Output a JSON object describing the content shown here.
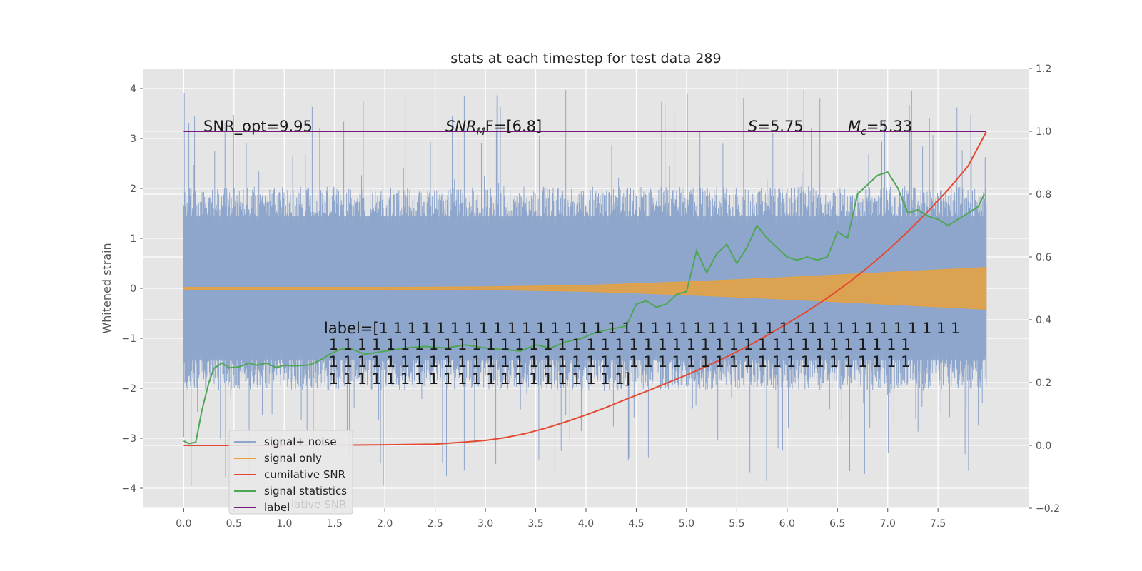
{
  "colors": {
    "background": "#e5e5e5",
    "grid": "#ffffff",
    "noise": "#8ea6cc",
    "signal": "#e9a23b",
    "cumulative": "#e24a33",
    "statistics": "#4ea656",
    "label": "#7a1a7a"
  },
  "chart_data": {
    "type": "line",
    "title": "stats at each timestep for test data 289",
    "ylabel": "Whitened strain",
    "xlim": [
      -0.4,
      8.4
    ],
    "ylim": [
      -4.4,
      4.4
    ],
    "y2lim": [
      -0.2,
      1.2
    ],
    "x_ticks": [
      "0.0",
      "0.5",
      "1.0",
      "1.5",
      "2.0",
      "2.5",
      "3.0",
      "3.5",
      "4.0",
      "4.5",
      "5.0",
      "5.5",
      "6.0",
      "6.5",
      "7.0",
      "7.5"
    ],
    "y_ticks": [
      "4",
      "3",
      "2",
      "1",
      "0",
      "−1",
      "−2",
      "−3",
      "−4"
    ],
    "y2_ticks": [
      "1.2",
      "1.0",
      "0.8",
      "0.6",
      "0.4",
      "0.2",
      "0.0",
      "−0.2"
    ],
    "annotations": {
      "snr_opt": "SNR_opt=9.95",
      "snr_mf_sym": "SNR",
      "snr_mf_sub": "M",
      "snr_mf_rest": "F=[6.8]",
      "s_sym": "S",
      "s_rest": "=5.75",
      "mc_sym": "M",
      "mc_sub": "c",
      "mc_rest": "=5.33",
      "label_lines": [
        "label=[1 1 1 1 1 1 1 1 1 1 1 1 1 1 1 1 1 1 1 1 1 1 1 1 1 1 1 1 1 1 1 1 1 1 1 1 1 1 1 1 1",
        " 1 1 1 1 1 1 1 1 1 1 1 1 1 1 1 1 1 1 1 1 1 1 1 1 1 1 1 1 1 1 1 1 1 1 1 1 1 1 1 1 1",
        " 1 1 1 1 1 1 1 1 1 1 1 1 1 1 1 1 1 1 1 1 1 1 1 1 1 1 1 1 1 1 1 1 1 1 1 1 1 1 1 1 1",
        " 1 1 1 1 1 1 1 1 1 1 1 1 1 1 1 1 1 1 1 1 1]"
      ]
    },
    "legend": {
      "placement": "lower-left",
      "entries": [
        "signal+ noise",
        "signal only",
        "cumilative SNR",
        "signal statistics",
        "label"
      ],
      "ghost_text": "lative SNR"
    },
    "label_line": {
      "x": [
        0.0,
        7.98
      ],
      "y2": 1.0
    },
    "noise_band": {
      "x_start": 0.0,
      "x_end": 7.98,
      "bulk_amplitude": 1.7,
      "peak_amplitude": 4.0
    },
    "signal_envelope": {
      "x": [
        0.0,
        2.0,
        3.0,
        4.0,
        5.0,
        6.0,
        7.0,
        7.98
      ],
      "amplitude": [
        0.02,
        0.02,
        0.03,
        0.06,
        0.13,
        0.22,
        0.32,
        0.42
      ]
    },
    "series": [
      {
        "name": "cumilative SNR",
        "axis": "right",
        "x": [
          0.0,
          0.5,
          1.0,
          1.5,
          2.0,
          2.5,
          2.8,
          3.0,
          3.2,
          3.4,
          3.6,
          3.8,
          4.0,
          4.2,
          4.4,
          4.6,
          4.8,
          5.0,
          5.2,
          5.4,
          5.6,
          5.8,
          6.0,
          6.2,
          6.4,
          6.6,
          6.8,
          7.0,
          7.2,
          7.4,
          7.6,
          7.8,
          7.98
        ],
        "y": [
          0.0,
          0.0,
          0.0,
          0.001,
          0.002,
          0.004,
          0.011,
          0.016,
          0.025,
          0.038,
          0.055,
          0.075,
          0.097,
          0.121,
          0.147,
          0.172,
          0.198,
          0.224,
          0.252,
          0.282,
          0.314,
          0.35,
          0.388,
          0.427,
          0.469,
          0.516,
          0.566,
          0.621,
          0.681,
          0.745,
          0.814,
          0.89,
          0.998
        ]
      },
      {
        "name": "signal statistics",
        "axis": "right",
        "x": [
          0.0,
          0.05,
          0.12,
          0.18,
          0.25,
          0.3,
          0.38,
          0.45,
          0.55,
          0.65,
          0.72,
          0.82,
          0.92,
          1.0,
          1.1,
          1.25,
          1.35,
          1.45,
          1.55,
          1.65,
          1.8,
          2.0,
          2.2,
          2.4,
          2.6,
          2.8,
          3.0,
          3.2,
          3.35,
          3.5,
          3.65,
          3.8,
          3.95,
          4.1,
          4.25,
          4.4,
          4.5,
          4.6,
          4.7,
          4.8,
          4.9,
          5.0,
          5.1,
          5.2,
          5.3,
          5.4,
          5.5,
          5.6,
          5.7,
          5.8,
          5.9,
          6.0,
          6.1,
          6.2,
          6.3,
          6.4,
          6.5,
          6.6,
          6.7,
          6.8,
          6.9,
          7.0,
          7.1,
          7.2,
          7.3,
          7.4,
          7.5,
          7.6,
          7.7,
          7.8,
          7.9,
          7.96
        ],
        "y": [
          0.014,
          0.006,
          0.01,
          0.11,
          0.2,
          0.245,
          0.262,
          0.247,
          0.25,
          0.262,
          0.255,
          0.262,
          0.248,
          0.255,
          0.253,
          0.256,
          0.27,
          0.29,
          0.305,
          0.31,
          0.29,
          0.3,
          0.31,
          0.315,
          0.31,
          0.32,
          0.31,
          0.305,
          0.3,
          0.32,
          0.31,
          0.33,
          0.34,
          0.36,
          0.37,
          0.38,
          0.45,
          0.46,
          0.44,
          0.45,
          0.48,
          0.49,
          0.62,
          0.55,
          0.61,
          0.64,
          0.58,
          0.63,
          0.7,
          0.66,
          0.63,
          0.6,
          0.59,
          0.6,
          0.59,
          0.6,
          0.68,
          0.66,
          0.8,
          0.83,
          0.86,
          0.87,
          0.82,
          0.74,
          0.75,
          0.73,
          0.72,
          0.7,
          0.72,
          0.74,
          0.76,
          0.8
        ]
      }
    ]
  }
}
